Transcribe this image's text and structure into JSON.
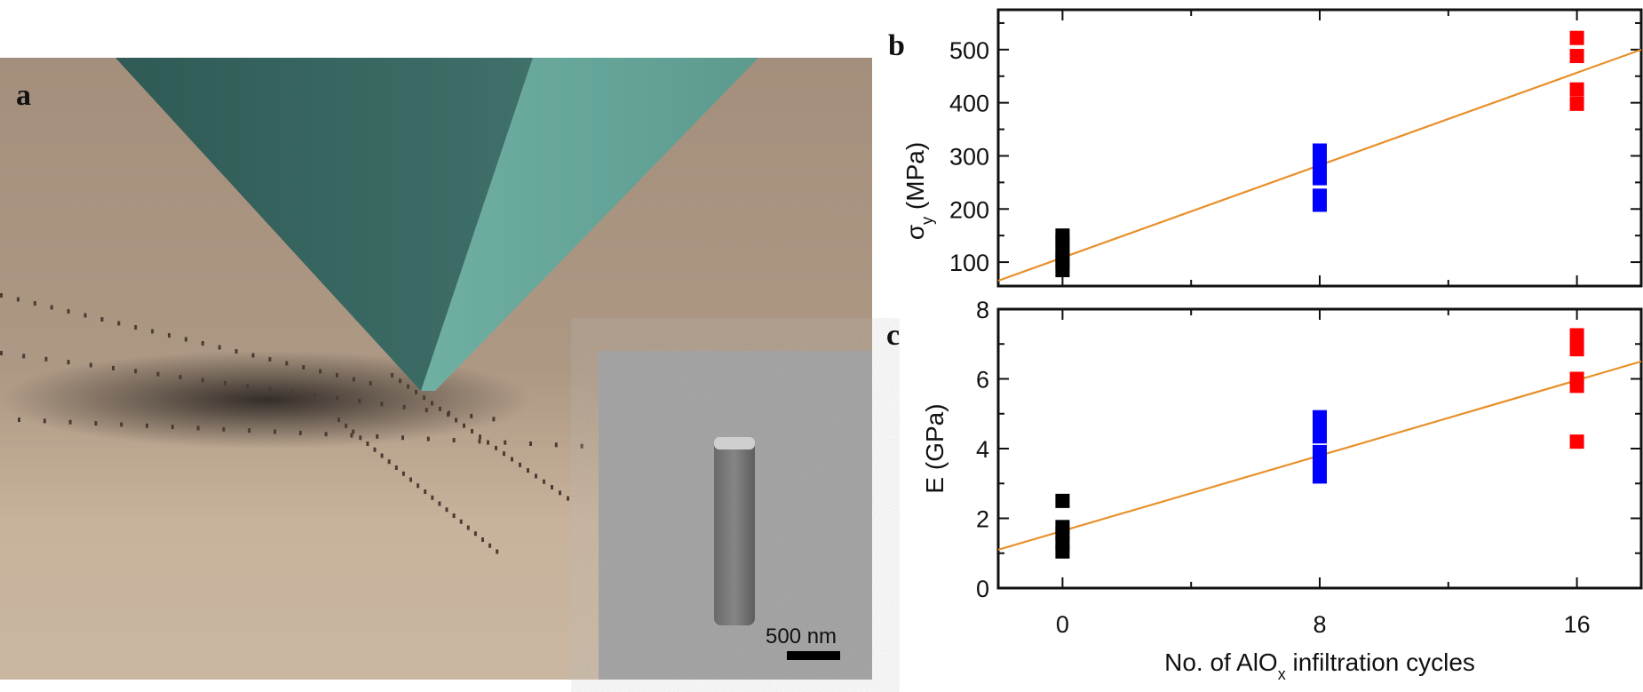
{
  "panel_a": {
    "label": "a",
    "scale_bar_text": "500 nm",
    "colors": {
      "substrate": "#b59f8a",
      "tip": "#5f9f93",
      "inset_bg": "#a7a7a7"
    }
  },
  "chart_data": [
    {
      "panel_label": "b",
      "type": "scatter",
      "ylabel_main": "σ",
      "ylabel_sub": "y",
      "ylabel_unit": " (MPa)",
      "xlim": [
        -2,
        18
      ],
      "ylim": [
        55,
        575
      ],
      "xticks": [
        0,
        8,
        16
      ],
      "yticks": [
        100,
        200,
        300,
        400,
        500
      ],
      "grid": false,
      "series": [
        {
          "color": "#000000",
          "x": [
            0,
            0,
            0,
            0,
            0,
            0
          ],
          "y": [
            85,
            100,
            112,
            122,
            140,
            150
          ]
        },
        {
          "color": "#0000ff",
          "x": [
            8,
            8,
            8,
            8,
            8,
            8
          ],
          "y": [
            208,
            225,
            258,
            275,
            295,
            310
          ]
        },
        {
          "color": "#ff0000",
          "x": [
            16,
            16,
            16,
            16
          ],
          "y": [
            398,
            425,
            488,
            522
          ]
        }
      ],
      "fit": {
        "color": "#e8902a",
        "slope": 21.75,
        "intercept": 108.5
      }
    },
    {
      "panel_label": "c",
      "type": "scatter",
      "ylabel_main": "E (GPa)",
      "xlim": [
        -2,
        18
      ],
      "ylim": [
        0,
        8
      ],
      "xticks": [
        0,
        8,
        16
      ],
      "yticks": [
        0,
        2,
        4,
        6,
        8
      ],
      "grid": false,
      "series": [
        {
          "color": "#000000",
          "x": [
            0,
            0,
            0,
            0,
            0
          ],
          "y": [
            1.05,
            1.3,
            1.55,
            1.75,
            2.5
          ]
        },
        {
          "color": "#0000ff",
          "x": [
            8,
            8,
            8,
            8,
            8,
            8
          ],
          "y": [
            3.2,
            3.5,
            3.9,
            4.35,
            4.65,
            4.9
          ]
        },
        {
          "color": "#ff0000",
          "x": [
            16,
            16,
            16,
            16,
            16
          ],
          "y": [
            4.2,
            5.8,
            6.0,
            6.85,
            7.25
          ]
        }
      ],
      "fit": {
        "color": "#e8902a",
        "slope": 0.27,
        "intercept": 1.64
      }
    }
  ],
  "xaxis": {
    "label_pre": "No. of AlO",
    "label_sub": "x",
    "label_post": " infiltration cycles"
  }
}
